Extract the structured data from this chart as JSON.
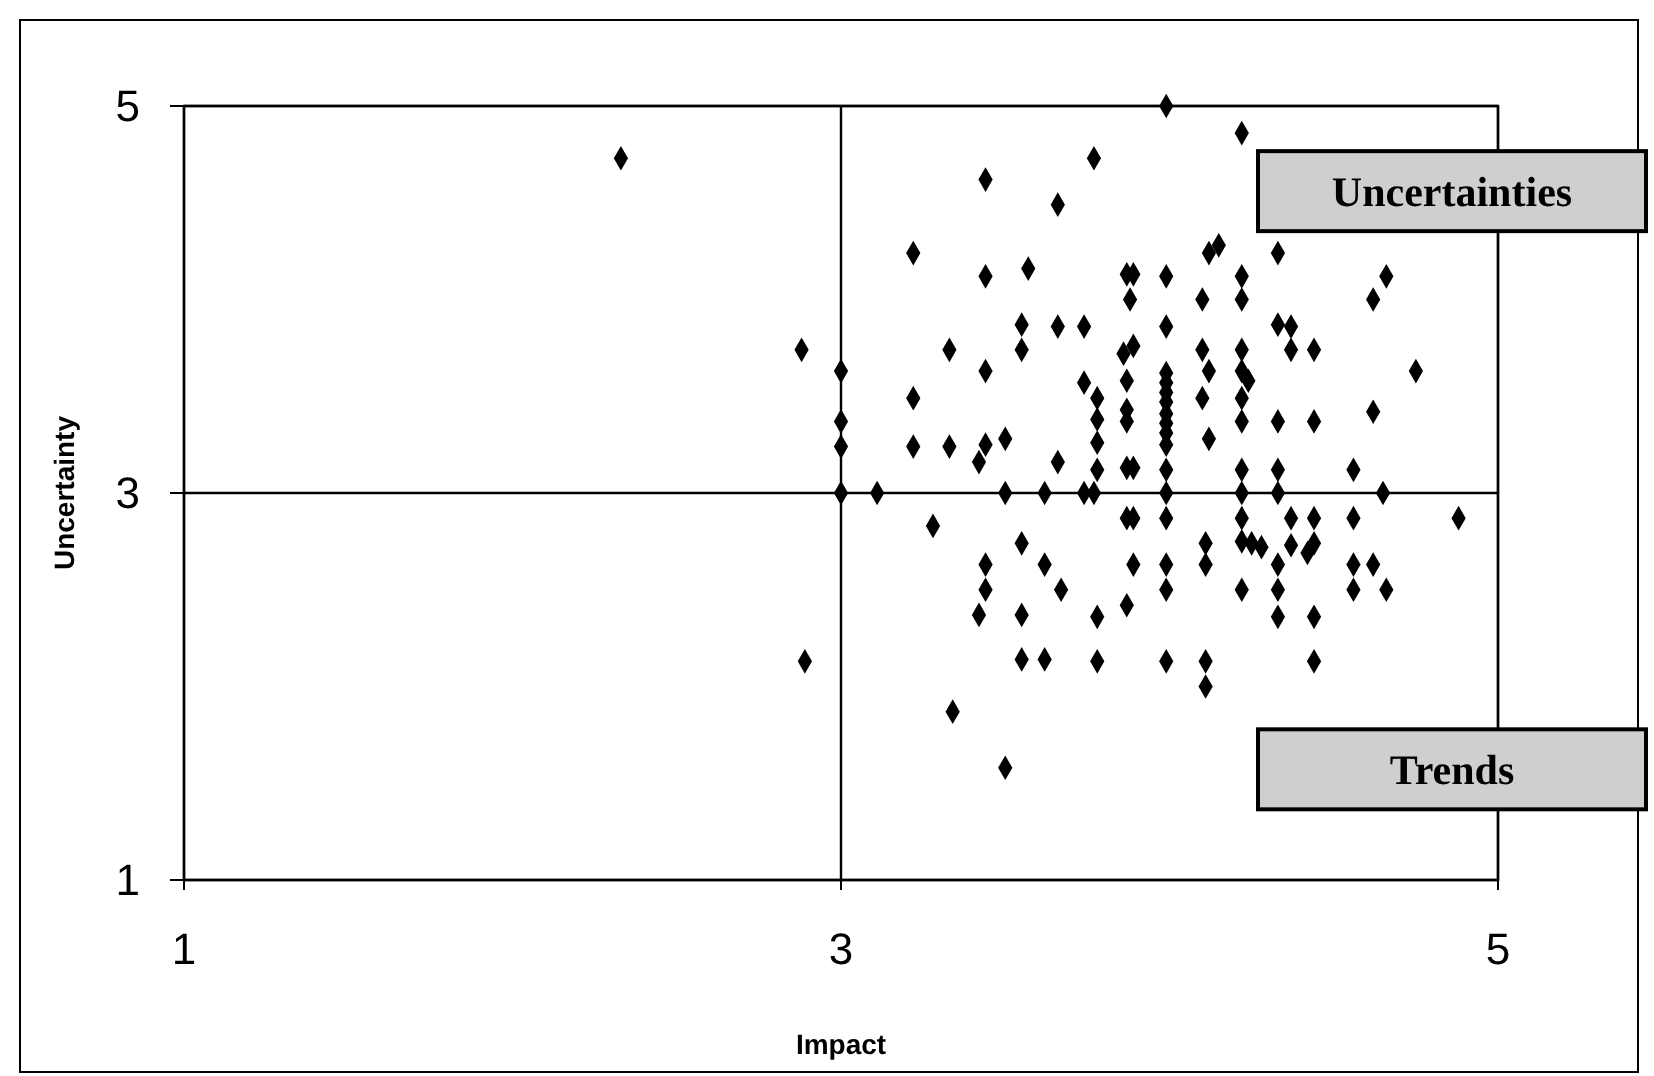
{
  "chart_data": {
    "type": "scatter",
    "xlabel": "Impact",
    "ylabel": "Uncertainty",
    "xlim": [
      1,
      5
    ],
    "ylim": [
      1,
      5
    ],
    "xticks": [
      1,
      3,
      5
    ],
    "yticks": [
      1,
      3,
      5
    ],
    "grid": true,
    "marker": "diamond",
    "annotations": [
      "Uncertainties",
      "Trends"
    ],
    "series": [
      {
        "color": "#000000",
        "x": [
          2.33,
          2.88,
          3.0,
          3.0,
          3.0,
          3.0,
          3.11,
          3.22,
          3.22,
          3.22,
          3.33,
          3.33,
          3.44,
          3.44,
          3.44,
          3.44,
          3.42,
          3.5,
          3.5,
          3.57,
          3.55,
          3.55,
          3.66,
          3.66,
          3.66,
          3.62,
          3.74,
          3.74,
          3.77,
          3.99,
          4.22,
          4.12,
          4.15,
          4.33,
          3.87,
          3.89,
          3.99,
          4.22,
          4.66,
          3.88,
          4.1,
          4.22,
          4.62,
          3.99,
          4.33,
          4.37,
          3.86,
          3.89,
          4.1,
          4.22,
          4.37,
          4.44,
          4.75,
          3.87,
          3.99,
          3.99,
          3.99,
          3.99,
          3.99,
          3.99,
          3.99,
          3.99,
          4.12,
          4.1,
          4.22,
          4.24,
          4.22,
          3.78,
          3.78,
          3.78,
          3.87,
          3.87,
          4.12,
          4.22,
          4.33,
          4.44,
          4.62,
          3.78,
          3.87,
          3.89,
          3.99,
          4.22,
          4.33,
          4.56,
          3.74,
          3.77,
          3.99,
          4.22,
          4.33,
          4.65,
          3.87,
          3.89,
          3.99,
          4.22,
          4.37,
          4.44,
          4.56,
          4.88,
          4.11,
          4.22,
          4.25,
          4.28,
          4.37,
          4.44,
          4.42,
          3.89,
          3.99,
          4.11,
          4.33,
          4.56,
          4.62,
          3.67,
          3.99,
          4.22,
          4.33,
          4.56,
          4.66,
          3.87,
          3.78,
          4.33,
          4.44,
          3.78,
          3.99,
          4.11,
          4.44,
          4.11,
          3.28,
          3.55,
          3.44,
          3.62,
          3.44,
          3.42,
          3.55,
          2.89,
          3.55,
          3.62,
          3.34,
          3.5
        ],
        "values": [
          4.73,
          3.74,
          3.63,
          3.37,
          3.24,
          3.0,
          3.0,
          4.24,
          3.49,
          3.24,
          3.74,
          3.24,
          4.62,
          4.12,
          3.63,
          3.25,
          3.16,
          3.28,
          3.0,
          4.16,
          3.87,
          3.74,
          4.49,
          3.86,
          3.16,
          3.0,
          3.86,
          3.57,
          4.73,
          5.0,
          4.86,
          4.24,
          4.28,
          4.24,
          4.13,
          4.13,
          4.12,
          4.12,
          4.12,
          4.0,
          4.0,
          4.0,
          4.0,
          3.86,
          3.87,
          3.86,
          3.72,
          3.76,
          3.74,
          3.74,
          3.74,
          3.74,
          3.63,
          3.58,
          3.62,
          3.57,
          3.52,
          3.47,
          3.41,
          3.36,
          3.31,
          3.25,
          3.63,
          3.49,
          3.63,
          3.58,
          3.49,
          3.49,
          3.38,
          3.26,
          3.43,
          3.37,
          3.28,
          3.37,
          3.37,
          3.37,
          3.42,
          3.12,
          3.13,
          3.13,
          3.12,
          3.12,
          3.12,
          3.12,
          3.0,
          3.0,
          3.0,
          3.0,
          3.0,
          3.0,
          2.87,
          2.87,
          2.87,
          2.87,
          2.87,
          2.87,
          2.87,
          2.87,
          2.74,
          2.75,
          2.74,
          2.72,
          2.73,
          2.74,
          2.69,
          2.63,
          2.63,
          2.63,
          2.63,
          2.63,
          2.63,
          2.5,
          2.5,
          2.5,
          2.5,
          2.5,
          2.5,
          2.42,
          2.36,
          2.36,
          2.36,
          2.13,
          2.13,
          2.13,
          2.13,
          2.0,
          2.83,
          2.74,
          2.63,
          2.63,
          2.5,
          2.37,
          2.37,
          2.13,
          2.14,
          2.14,
          1.87,
          1.58
        ]
      }
    ]
  }
}
